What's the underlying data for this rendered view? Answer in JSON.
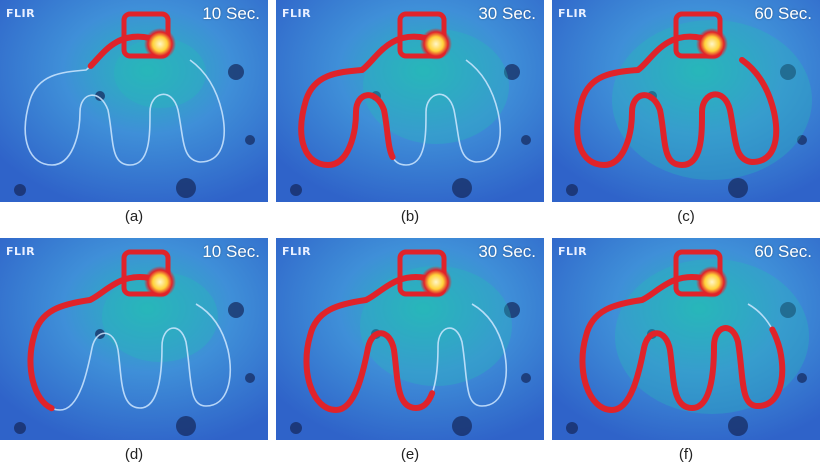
{
  "brand": "FLIR",
  "colors": {
    "background_cold": "#2f63c9",
    "warm": "#27b7b9",
    "hot": "#e0232a",
    "hottest": "#fff6c8",
    "wire": "#cfe8ff"
  },
  "panels": [
    {
      "caption": "(a)",
      "time": "10 Sec.",
      "heat_progress": 0.1
    },
    {
      "caption": "(b)",
      "time": "30 Sec.",
      "heat_progress": 0.55
    },
    {
      "caption": "(c)",
      "time": "60 Sec.",
      "heat_progress": 1.0
    },
    {
      "caption": "(d)",
      "time": "10 Sec.",
      "heat_progress": 0.3
    },
    {
      "caption": "(e)",
      "time": "30 Sec.",
      "heat_progress": 0.6
    },
    {
      "caption": "(f)",
      "time": "60 Sec.",
      "heat_progress": 0.95
    }
  ]
}
